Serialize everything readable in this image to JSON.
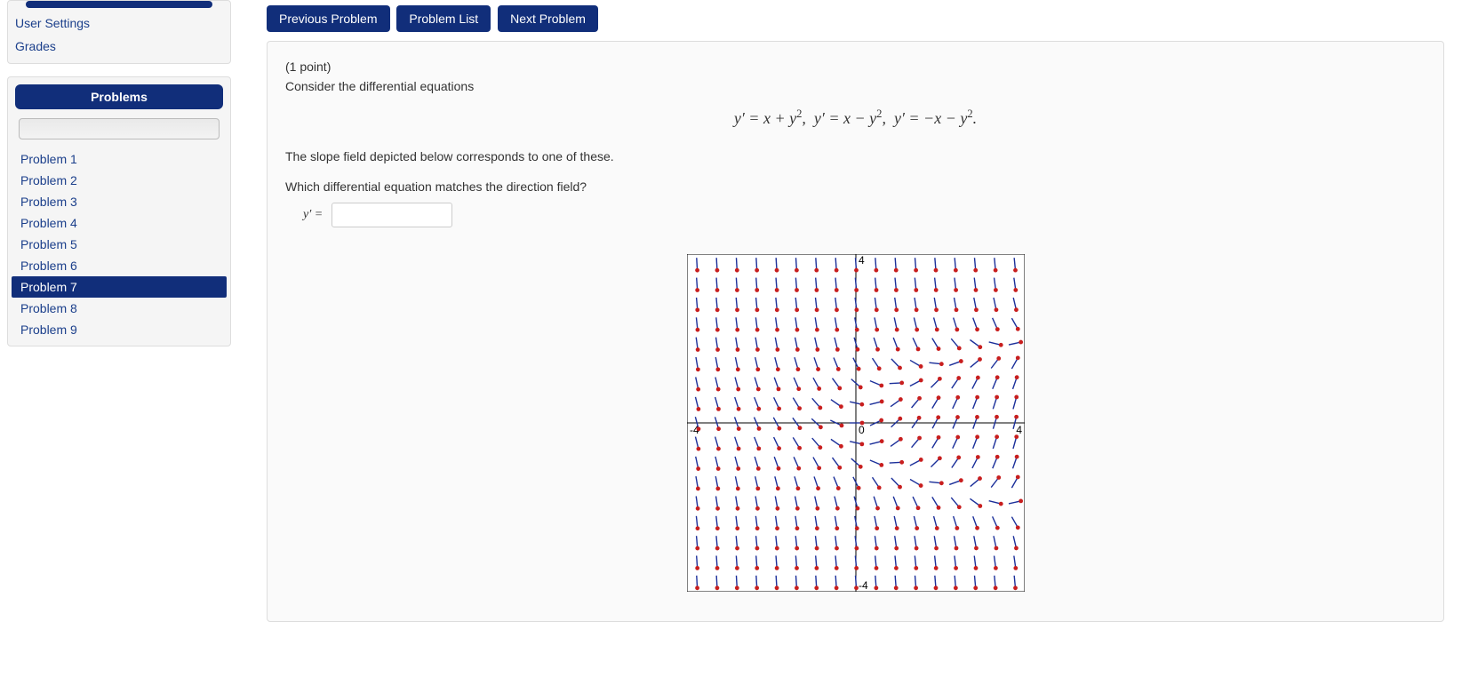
{
  "sidebar": {
    "nav_links": [
      "User Settings",
      "Grades"
    ],
    "problems_header": "Problems",
    "problems": [
      {
        "label": "Problem 1",
        "active": false
      },
      {
        "label": "Problem 2",
        "active": false
      },
      {
        "label": "Problem 3",
        "active": false
      },
      {
        "label": "Problem 4",
        "active": false
      },
      {
        "label": "Problem 5",
        "active": false
      },
      {
        "label": "Problem 6",
        "active": false
      },
      {
        "label": "Problem 7",
        "active": true
      },
      {
        "label": "Problem 8",
        "active": false
      },
      {
        "label": "Problem 9",
        "active": false
      }
    ]
  },
  "nav_buttons": {
    "prev": "Previous Problem",
    "list": "Problem List",
    "next": "Next Problem"
  },
  "problem": {
    "points": "(1 point)",
    "intro": "Consider the differential equations",
    "equations_html": "y′ = x + y², y′ = x − y², y′ = −x − y².",
    "below_text": "The slope field depicted below corresponds to one of these.",
    "question": "Which differential equation matches the direction field?",
    "answer_label": "y′  ="
  },
  "slope_field": {
    "equation": "x - y*y",
    "xmin": -4,
    "xmax": 4,
    "ymin": -4,
    "ymax": 4,
    "grid_count": 17,
    "svg_size": 380,
    "background": "#ffffff",
    "border_color": "#000000",
    "axis_color": "#000000",
    "arrow_line_color": "#1b2f9a",
    "arrow_head_color": "#c81e1e",
    "arrow_length": 14,
    "head_radius": 2.4,
    "axis_labels": {
      "xneg": "-4",
      "xpos": "4",
      "ypos": "4",
      "yneg": "-4",
      "origin": "0"
    }
  },
  "colors": {
    "brand_blue": "#112e7a",
    "link_blue": "#1b3f8b",
    "panel_bg": "#f5f5f5"
  }
}
